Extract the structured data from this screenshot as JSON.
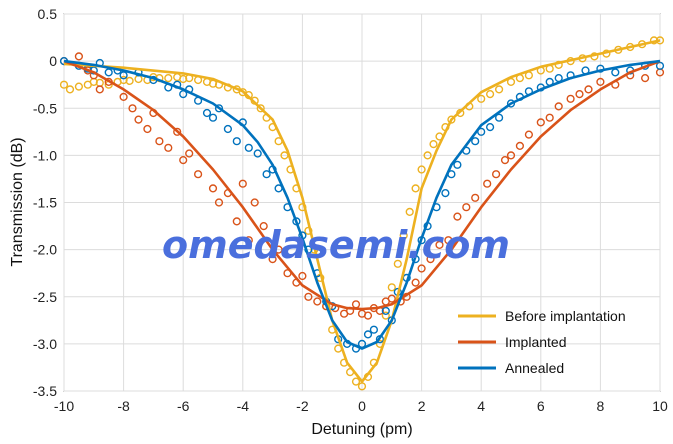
{
  "chart_data": {
    "type": "line",
    "xlabel": "Detuning (pm)",
    "ylabel": "Transmission (dB)",
    "xlim": [
      -10,
      10
    ],
    "ylim": [
      -3.5,
      0.5
    ],
    "xticks": [
      -10,
      -8,
      -6,
      -4,
      -2,
      0,
      2,
      4,
      6,
      8,
      10
    ],
    "yticks": [
      0.5,
      0,
      -0.5,
      -1.0,
      -1.5,
      -2.0,
      -2.5,
      -3.0,
      -3.5
    ],
    "ytick_labels": [
      "0.5",
      "0",
      "-0.5",
      "-1.0",
      "-1.5",
      "-2.0",
      "-2.5",
      "-3.0",
      "-3.5"
    ],
    "grid": true,
    "legend_position": "bottom-right",
    "series": [
      {
        "name": "Before implantation",
        "color": "#EDB120",
        "fit_x": [
          -10,
          -8,
          -6,
          -5,
          -4,
          -3,
          -2.5,
          -2,
          -1.5,
          -1,
          -0.5,
          0,
          0.5,
          1,
          1.5,
          2,
          2.5,
          3,
          4,
          5,
          6,
          8,
          10
        ],
        "fit_y": [
          -0.03,
          -0.07,
          -0.13,
          -0.19,
          -0.32,
          -0.62,
          -0.95,
          -1.45,
          -2.1,
          -2.75,
          -3.2,
          -3.4,
          -3.2,
          -2.75,
          -2.1,
          -1.35,
          -0.95,
          -0.62,
          -0.33,
          -0.17,
          -0.06,
          0.08,
          0.22
        ],
        "markers": [
          [
            -10,
            -0.25
          ],
          [
            -9.8,
            -0.3
          ],
          [
            -9.5,
            -0.27
          ],
          [
            -9.2,
            -0.25
          ],
          [
            -9,
            -0.22
          ],
          [
            -8.8,
            -0.23
          ],
          [
            -8.5,
            -0.25
          ],
          [
            -8.2,
            -0.22
          ],
          [
            -8,
            -0.2
          ],
          [
            -7.8,
            -0.21
          ],
          [
            -7.5,
            -0.19
          ],
          [
            -7.2,
            -0.2
          ],
          [
            -7,
            -0.17
          ],
          [
            -6.8,
            -0.18
          ],
          [
            -6.5,
            -0.18
          ],
          [
            -6.2,
            -0.17
          ],
          [
            -6,
            -0.19
          ],
          [
            -5.8,
            -0.18
          ],
          [
            -5.5,
            -0.2
          ],
          [
            -5.2,
            -0.22
          ],
          [
            -5,
            -0.24
          ],
          [
            -4.8,
            -0.25
          ],
          [
            -4.5,
            -0.28
          ],
          [
            -4.2,
            -0.3
          ],
          [
            -4,
            -0.33
          ],
          [
            -3.8,
            -0.36
          ],
          [
            -3.6,
            -0.42
          ],
          [
            -3.4,
            -0.5
          ],
          [
            -3.2,
            -0.6
          ],
          [
            -3,
            -0.7
          ],
          [
            -2.8,
            -0.85
          ],
          [
            -2.6,
            -1.0
          ],
          [
            -2.4,
            -1.15
          ],
          [
            -2.2,
            -1.35
          ],
          [
            -2,
            -1.55
          ],
          [
            -1.8,
            -1.8
          ],
          [
            -1.6,
            -2.0
          ],
          [
            -1.4,
            -2.3
          ],
          [
            -1.2,
            -2.6
          ],
          [
            -1,
            -2.85
          ],
          [
            -0.8,
            -3.05
          ],
          [
            -0.6,
            -3.2
          ],
          [
            -0.4,
            -3.3
          ],
          [
            -0.2,
            -3.4
          ],
          [
            0,
            -3.45
          ],
          [
            0.2,
            -3.35
          ],
          [
            0.4,
            -3.2
          ],
          [
            0.6,
            -3.0
          ],
          [
            0.8,
            -2.7
          ],
          [
            1,
            -2.4
          ],
          [
            1.2,
            -2.15
          ],
          [
            1.4,
            -1.85
          ],
          [
            1.6,
            -1.6
          ],
          [
            1.8,
            -1.35
          ],
          [
            2,
            -1.15
          ],
          [
            2.2,
            -1.0
          ],
          [
            2.4,
            -0.88
          ],
          [
            2.6,
            -0.8
          ],
          [
            2.8,
            -0.7
          ],
          [
            3,
            -0.62
          ],
          [
            3.3,
            -0.55
          ],
          [
            3.6,
            -0.48
          ],
          [
            4,
            -0.4
          ],
          [
            4.3,
            -0.35
          ],
          [
            4.6,
            -0.3
          ],
          [
            5,
            -0.22
          ],
          [
            5.3,
            -0.18
          ],
          [
            5.6,
            -0.15
          ],
          [
            6,
            -0.1
          ],
          [
            6.3,
            -0.08
          ],
          [
            6.6,
            -0.04
          ],
          [
            7,
            0.0
          ],
          [
            7.4,
            0.03
          ],
          [
            7.8,
            0.05
          ],
          [
            8.2,
            0.08
          ],
          [
            8.6,
            0.12
          ],
          [
            9,
            0.15
          ],
          [
            9.4,
            0.18
          ],
          [
            9.8,
            0.22
          ],
          [
            10,
            0.22
          ]
        ]
      },
      {
        "name": "Implanted",
        "color": "#D95319",
        "fit_x": [
          -10,
          -9,
          -8,
          -7,
          -6,
          -5,
          -4,
          -3,
          -2,
          -1,
          -0.5,
          0,
          0.5,
          1,
          2,
          3,
          4,
          5,
          6,
          7,
          8,
          9,
          10
        ],
        "fit_y": [
          0.0,
          -0.12,
          -0.3,
          -0.52,
          -0.8,
          -1.15,
          -1.55,
          -2.0,
          -2.38,
          -2.58,
          -2.62,
          -2.63,
          -2.62,
          -2.58,
          -2.38,
          -2.0,
          -1.55,
          -1.15,
          -0.8,
          -0.52,
          -0.3,
          -0.12,
          0.0
        ],
        "markers": [
          [
            -10,
            0.0
          ],
          [
            -9.5,
            0.05
          ],
          [
            -9.2,
            -0.1
          ],
          [
            -9,
            -0.15
          ],
          [
            -8.8,
            -0.3
          ],
          [
            -8.5,
            -0.22
          ],
          [
            -8,
            -0.38
          ],
          [
            -7.7,
            -0.5
          ],
          [
            -7.5,
            -0.62
          ],
          [
            -7.2,
            -0.72
          ],
          [
            -7,
            -0.55
          ],
          [
            -6.8,
            -0.85
          ],
          [
            -6.5,
            -0.92
          ],
          [
            -6.2,
            -0.75
          ],
          [
            -6,
            -1.05
          ],
          [
            -5.8,
            -0.98
          ],
          [
            -5.5,
            -1.2
          ],
          [
            -5,
            -1.35
          ],
          [
            -4.8,
            -1.5
          ],
          [
            -4.5,
            -1.4
          ],
          [
            -4.2,
            -1.7
          ],
          [
            -4,
            -1.3
          ],
          [
            -3.8,
            -1.9
          ],
          [
            -3.6,
            -1.5
          ],
          [
            -3.3,
            -1.75
          ],
          [
            -3,
            -2.1
          ],
          [
            -2.8,
            -2.0
          ],
          [
            -2.5,
            -2.25
          ],
          [
            -2.2,
            -2.35
          ],
          [
            -2,
            -2.28
          ],
          [
            -1.8,
            -2.5
          ],
          [
            -1.5,
            -2.55
          ],
          [
            -1.2,
            -2.6
          ],
          [
            -0.9,
            -2.62
          ],
          [
            -0.6,
            -2.68
          ],
          [
            -0.4,
            -2.65
          ],
          [
            -0.2,
            -2.58
          ],
          [
            0,
            -2.68
          ],
          [
            0.2,
            -2.7
          ],
          [
            0.4,
            -2.62
          ],
          [
            0.6,
            -2.65
          ],
          [
            0.8,
            -2.55
          ],
          [
            1,
            -2.52
          ],
          [
            1.3,
            -2.55
          ],
          [
            1.5,
            -2.5
          ],
          [
            1.8,
            -2.35
          ],
          [
            2,
            -2.2
          ],
          [
            2.3,
            -2.1
          ],
          [
            2.6,
            -1.95
          ],
          [
            2.9,
            -1.9
          ],
          [
            3.2,
            -1.65
          ],
          [
            3.5,
            -1.55
          ],
          [
            3.8,
            -1.45
          ],
          [
            4.2,
            -1.3
          ],
          [
            4.5,
            -1.2
          ],
          [
            4.8,
            -1.05
          ],
          [
            5,
            -1.0
          ],
          [
            5.3,
            -0.9
          ],
          [
            5.6,
            -0.78
          ],
          [
            6,
            -0.65
          ],
          [
            6.3,
            -0.6
          ],
          [
            6.6,
            -0.48
          ],
          [
            7,
            -0.4
          ],
          [
            7.3,
            -0.35
          ],
          [
            7.6,
            -0.3
          ],
          [
            8,
            -0.22
          ],
          [
            8.5,
            -0.25
          ],
          [
            9,
            -0.15
          ],
          [
            9.5,
            -0.18
          ],
          [
            10,
            -0.12
          ]
        ]
      },
      {
        "name": "Annealed",
        "color": "#0072BD",
        "fit_x": [
          -10,
          -9,
          -8,
          -7,
          -6,
          -5,
          -4,
          -3.5,
          -3,
          -2.5,
          -2,
          -1.5,
          -1,
          -0.5,
          0,
          0.5,
          1,
          1.5,
          2,
          2.5,
          3,
          4,
          5,
          6,
          7,
          8,
          9,
          10
        ],
        "fit_y": [
          0.0,
          -0.04,
          -0.1,
          -0.18,
          -0.3,
          -0.45,
          -0.68,
          -0.86,
          -1.1,
          -1.45,
          -1.88,
          -2.35,
          -2.75,
          -2.98,
          -3.05,
          -2.98,
          -2.75,
          -2.35,
          -1.88,
          -1.45,
          -1.1,
          -0.68,
          -0.45,
          -0.3,
          -0.18,
          -0.1,
          -0.04,
          0.0
        ],
        "markers": [
          [
            -10,
            0.0
          ],
          [
            -9.5,
            -0.05
          ],
          [
            -9.2,
            -0.08
          ],
          [
            -9,
            -0.1
          ],
          [
            -8.8,
            -0.02
          ],
          [
            -8.5,
            -0.12
          ],
          [
            -8.2,
            -0.1
          ],
          [
            -8,
            -0.15
          ],
          [
            -7.5,
            -0.12
          ],
          [
            -7,
            -0.2
          ],
          [
            -6.5,
            -0.28
          ],
          [
            -6.2,
            -0.25
          ],
          [
            -6,
            -0.35
          ],
          [
            -5.8,
            -0.3
          ],
          [
            -5.5,
            -0.42
          ],
          [
            -5.2,
            -0.55
          ],
          [
            -5,
            -0.6
          ],
          [
            -4.8,
            -0.5
          ],
          [
            -4.5,
            -0.72
          ],
          [
            -4.2,
            -0.85
          ],
          [
            -4,
            -0.65
          ],
          [
            -3.8,
            -0.92
          ],
          [
            -3.5,
            -0.98
          ],
          [
            -3.2,
            -1.2
          ],
          [
            -3,
            -1.15
          ],
          [
            -2.8,
            -1.35
          ],
          [
            -2.5,
            -1.55
          ],
          [
            -2.2,
            -1.7
          ],
          [
            -2,
            -1.85
          ],
          [
            -1.8,
            -2.0
          ],
          [
            -1.5,
            -2.25
          ],
          [
            -1.2,
            -2.55
          ],
          [
            -1,
            -2.6
          ],
          [
            -0.8,
            -2.95
          ],
          [
            -0.5,
            -3.0
          ],
          [
            -0.2,
            -3.05
          ],
          [
            0,
            -3.0
          ],
          [
            0.2,
            -2.9
          ],
          [
            0.4,
            -2.85
          ],
          [
            0.6,
            -2.95
          ],
          [
            0.8,
            -2.65
          ],
          [
            1,
            -2.75
          ],
          [
            1.2,
            -2.45
          ],
          [
            1.5,
            -2.3
          ],
          [
            1.8,
            -2.1
          ],
          [
            2,
            -1.9
          ],
          [
            2.2,
            -1.75
          ],
          [
            2.5,
            -1.55
          ],
          [
            2.8,
            -1.4
          ],
          [
            3,
            -1.2
          ],
          [
            3.2,
            -1.1
          ],
          [
            3.5,
            -0.95
          ],
          [
            3.8,
            -0.85
          ],
          [
            4,
            -0.75
          ],
          [
            4.3,
            -0.7
          ],
          [
            4.6,
            -0.6
          ],
          [
            5,
            -0.45
          ],
          [
            5.3,
            -0.38
          ],
          [
            5.6,
            -0.32
          ],
          [
            6,
            -0.28
          ],
          [
            6.3,
            -0.22
          ],
          [
            6.6,
            -0.18
          ],
          [
            7,
            -0.15
          ],
          [
            7.5,
            -0.1
          ],
          [
            8,
            -0.08
          ],
          [
            8.5,
            -0.12
          ],
          [
            9,
            -0.1
          ],
          [
            9.5,
            -0.05
          ],
          [
            10,
            -0.05
          ]
        ]
      }
    ]
  },
  "watermark": "omedasemi.com"
}
